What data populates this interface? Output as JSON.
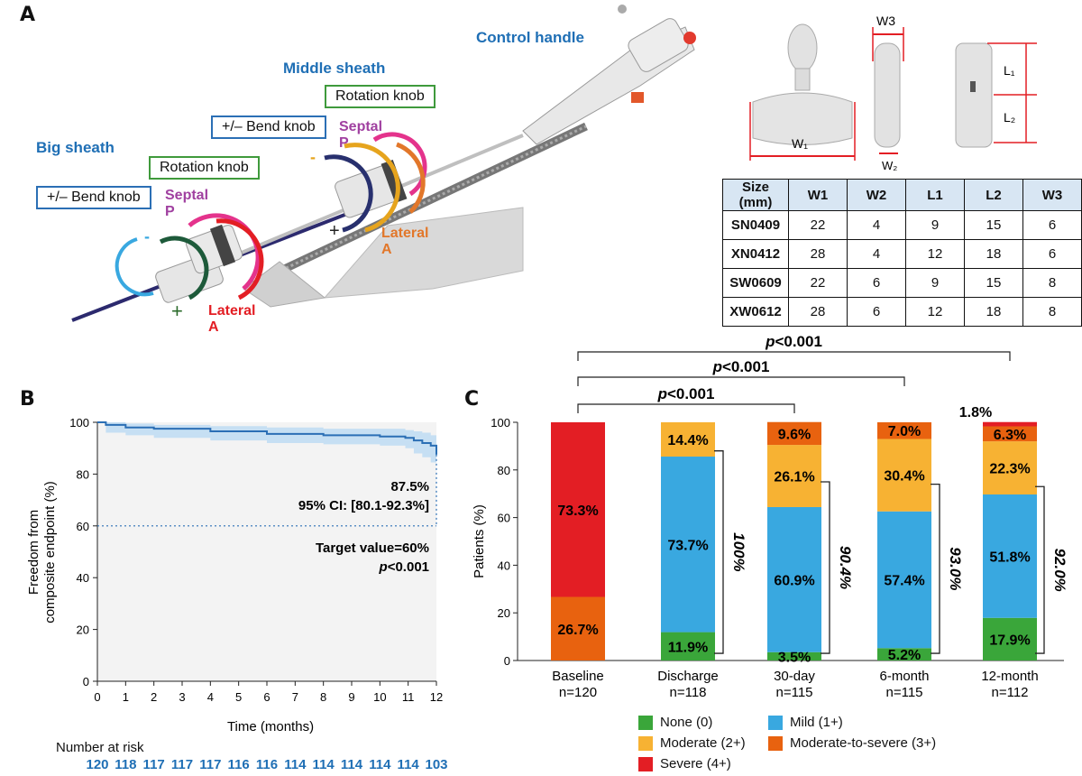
{
  "panels": {
    "a": "A",
    "b": "B",
    "c": "C"
  },
  "device": {
    "control_handle": "Control handle",
    "middle_sheath": "Middle sheath",
    "big_sheath": "Big sheath",
    "rotation_knob": "Rotation knob",
    "bend_knob": "+/– Bend knob",
    "septal_p": [
      "Septal",
      "P"
    ],
    "lateral_a": [
      "Lateral",
      "A"
    ],
    "plus": "+",
    "minus": "-"
  },
  "clip_dims": {
    "w1": "W₁",
    "w2": "W₂",
    "w3": "W3",
    "l1": "L₁",
    "l2": "L₂"
  },
  "size_table": {
    "headers": [
      "Size (mm)",
      "W1",
      "W2",
      "L1",
      "L2",
      "W3"
    ],
    "rows": [
      [
        "SN0409",
        "22",
        "4",
        "9",
        "15",
        "6"
      ],
      [
        "XN0412",
        "28",
        "4",
        "12",
        "18",
        "6"
      ],
      [
        "SW0609",
        "22",
        "6",
        "9",
        "15",
        "8"
      ],
      [
        "XW0612",
        "28",
        "6",
        "12",
        "18",
        "8"
      ]
    ]
  },
  "km": {
    "ylabel_line1": "Freedom from",
    "ylabel_line2": "composite endpoint (%)",
    "xlabel": "Time (months)",
    "estimate": "87.5%",
    "ci": "95% CI: [80.1-92.3%]",
    "target": "Target value=60%",
    "p_label": "p",
    "p_value": "<0.001",
    "risk_title": "Number at risk",
    "risk": [
      "120",
      "118",
      "117",
      "117",
      "117",
      "116",
      "116",
      "114",
      "114",
      "114",
      "114",
      "114",
      "103"
    ]
  },
  "bars": {
    "ylabel": "Patients (%)",
    "significance": [
      {
        "p": "p",
        "text": "<0.001"
      },
      {
        "p": "p",
        "text": "<0.001"
      },
      {
        "p": "p",
        "text": "<0.001"
      }
    ],
    "top_label_12m": "1.8%"
  },
  "chart_data": [
    {
      "type": "line",
      "title": "",
      "xlabel": "Time (months)",
      "ylabel": "Freedom from composite endpoint (%)",
      "xlim": [
        0,
        12
      ],
      "ylim": [
        0,
        100
      ],
      "x_ticks": [
        "0",
        "1",
        "2",
        "3",
        "4",
        "5",
        "6",
        "7",
        "8",
        "9",
        "10",
        "11",
        "12"
      ],
      "y_ticks": [
        "0",
        "20",
        "40",
        "60",
        "80",
        "100"
      ],
      "series": [
        {
          "name": "Freedom from composite endpoint",
          "x": [
            0,
            0.3,
            1,
            2,
            4,
            6,
            8,
            10,
            10.9,
            11.2,
            11.5,
            11.8,
            12
          ],
          "y": [
            100,
            99,
            98,
            97.5,
            96.5,
            95.5,
            95,
            94.5,
            94,
            93,
            92,
            91,
            87.5
          ]
        },
        {
          "name": "95% CI upper",
          "x": [
            0,
            0.3,
            1,
            2,
            4,
            6,
            8,
            10,
            10.9,
            11.2,
            11.5,
            11.8,
            12
          ],
          "y": [
            100,
            100,
            99.5,
            99,
            98.5,
            98,
            97.5,
            97.5,
            97,
            96.5,
            96,
            95,
            92.3
          ]
        },
        {
          "name": "95% CI lower",
          "x": [
            0,
            0.3,
            1,
            2,
            4,
            6,
            8,
            10,
            10.9,
            11.2,
            11.5,
            11.8,
            12
          ],
          "y": [
            100,
            96,
            95,
            94,
            93,
            92,
            91.5,
            91,
            90,
            88,
            86.5,
            84.5,
            80.1
          ]
        }
      ],
      "reference_line": {
        "y": 60,
        "label": "Target value=60%"
      }
    },
    {
      "type": "bar",
      "stacked": true,
      "ylabel": "Patients (%)",
      "ylim": [
        0,
        100
      ],
      "y_ticks": [
        "0",
        "20",
        "40",
        "60",
        "80",
        "100"
      ],
      "categories": [
        "Baseline",
        "Discharge",
        "30-day",
        "6-month",
        "12-month"
      ],
      "n_labels": [
        "n=120",
        "n=118",
        "n=115",
        "n=115",
        "n=112"
      ],
      "series": [
        {
          "name": "None (0)",
          "color": "#3aa63a",
          "values": [
            0,
            11.9,
            3.5,
            5.2,
            17.9
          ],
          "labels": [
            "",
            "11.9%",
            "3.5%",
            "5.2%",
            "17.9%"
          ]
        },
        {
          "name": "Mild (1+)",
          "color": "#39a8e0",
          "values": [
            0,
            73.7,
            60.9,
            57.4,
            51.8
          ],
          "labels": [
            "",
            "73.7%",
            "60.9%",
            "57.4%",
            "51.8%"
          ]
        },
        {
          "name": "Moderate (2+)",
          "color": "#f7b233",
          "values": [
            0,
            14.4,
            26.1,
            30.4,
            22.3
          ],
          "labels": [
            "",
            "14.4%",
            "26.1%",
            "30.4%",
            "22.3%"
          ]
        },
        {
          "name": "Moderate-to-severe (3+)",
          "color": "#e8620f",
          "values": [
            26.7,
            0,
            9.6,
            7.0,
            6.3
          ],
          "labels": [
            "26.7%",
            "",
            "9.6%",
            "7.0%",
            "6.3%"
          ]
        },
        {
          "name": "Severe (4+)",
          "color": "#e31e24",
          "values": [
            73.3,
            0,
            0,
            0,
            1.8
          ],
          "labels": [
            "73.3%",
            "",
            "",
            "",
            ""
          ]
        }
      ],
      "brackets": [
        "100%",
        "90.4%",
        "93.0%",
        "92.0%"
      ],
      "legend": [
        "None (0)",
        "Mild (1+)",
        "Moderate (2+)",
        "Moderate-to-severe (3+)",
        "Severe (4+)"
      ]
    }
  ]
}
